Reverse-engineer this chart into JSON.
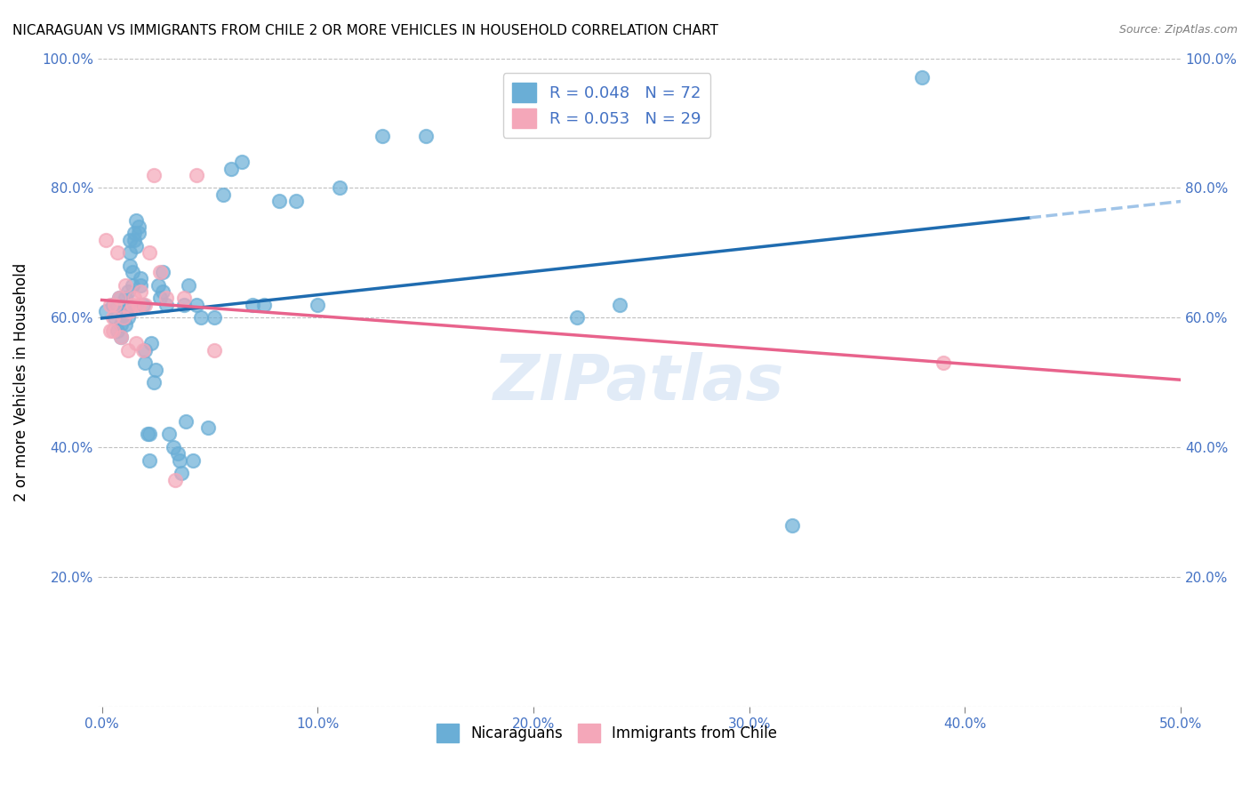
{
  "title": "NICARAGUAN VS IMMIGRANTS FROM CHILE 2 OR MORE VEHICLES IN HOUSEHOLD CORRELATION CHART",
  "source": "Source: ZipAtlas.com",
  "xlabel": "",
  "ylabel": "2 or more Vehicles in Household",
  "xlim": [
    0.0,
    0.5
  ],
  "ylim": [
    0.0,
    1.0
  ],
  "xticks": [
    0.0,
    0.1,
    0.2,
    0.3,
    0.4,
    0.5
  ],
  "xticklabels": [
    "0.0%",
    "10.0%",
    "20.0%",
    "30.0%",
    "40.0%",
    "50.0%"
  ],
  "yticks": [
    0.0,
    0.2,
    0.4,
    0.6,
    0.8,
    1.0
  ],
  "yticklabels": [
    "",
    "20.0%",
    "40.0%",
    "60.0%",
    "80.0%",
    "100.0%"
  ],
  "blue_color": "#6aaed6",
  "pink_color": "#f4a7b9",
  "trendline_blue": "#1f6cb0",
  "trendline_pink": "#e8638c",
  "trendline_blue_dashed": "#a0c4e8",
  "blue_R": 0.048,
  "blue_N": 72,
  "pink_R": 0.053,
  "pink_N": 29,
  "watermark": "ZIPatlas",
  "nicaraguan_label": "Nicaraguans",
  "chile_label": "Immigrants from Chile",
  "blue_x": [
    0.002,
    0.005,
    0.006,
    0.007,
    0.007,
    0.008,
    0.009,
    0.009,
    0.01,
    0.01,
    0.01,
    0.011,
    0.011,
    0.011,
    0.012,
    0.012,
    0.012,
    0.013,
    0.013,
    0.013,
    0.014,
    0.014,
    0.015,
    0.015,
    0.016,
    0.016,
    0.017,
    0.017,
    0.018,
    0.018,
    0.019,
    0.02,
    0.02,
    0.021,
    0.022,
    0.022,
    0.023,
    0.024,
    0.025,
    0.026,
    0.027,
    0.028,
    0.028,
    0.03,
    0.031,
    0.033,
    0.035,
    0.036,
    0.037,
    0.038,
    0.039,
    0.04,
    0.042,
    0.044,
    0.046,
    0.049,
    0.052,
    0.056,
    0.06,
    0.065,
    0.07,
    0.075,
    0.082,
    0.09,
    0.1,
    0.11,
    0.13,
    0.15,
    0.22,
    0.24,
    0.32,
    0.38
  ],
  "blue_y": [
    0.61,
    0.62,
    0.6,
    0.58,
    0.62,
    0.63,
    0.57,
    0.59,
    0.6,
    0.61,
    0.6,
    0.59,
    0.61,
    0.63,
    0.62,
    0.64,
    0.6,
    0.72,
    0.68,
    0.7,
    0.65,
    0.67,
    0.72,
    0.73,
    0.71,
    0.75,
    0.74,
    0.73,
    0.65,
    0.66,
    0.62,
    0.55,
    0.53,
    0.42,
    0.42,
    0.38,
    0.56,
    0.5,
    0.52,
    0.65,
    0.63,
    0.64,
    0.67,
    0.62,
    0.42,
    0.4,
    0.39,
    0.38,
    0.36,
    0.62,
    0.44,
    0.65,
    0.38,
    0.62,
    0.6,
    0.43,
    0.6,
    0.79,
    0.83,
    0.84,
    0.62,
    0.62,
    0.78,
    0.78,
    0.62,
    0.8,
    0.88,
    0.88,
    0.6,
    0.62,
    0.28,
    0.97
  ],
  "pink_x": [
    0.002,
    0.004,
    0.004,
    0.005,
    0.005,
    0.006,
    0.007,
    0.008,
    0.009,
    0.01,
    0.011,
    0.012,
    0.013,
    0.014,
    0.015,
    0.016,
    0.017,
    0.018,
    0.019,
    0.02,
    0.022,
    0.024,
    0.027,
    0.03,
    0.034,
    0.038,
    0.044,
    0.052,
    0.39
  ],
  "pink_y": [
    0.72,
    0.62,
    0.58,
    0.6,
    0.58,
    0.62,
    0.7,
    0.63,
    0.57,
    0.6,
    0.65,
    0.55,
    0.61,
    0.62,
    0.63,
    0.56,
    0.62,
    0.64,
    0.55,
    0.62,
    0.7,
    0.82,
    0.67,
    0.63,
    0.35,
    0.63,
    0.82,
    0.55,
    0.53
  ]
}
